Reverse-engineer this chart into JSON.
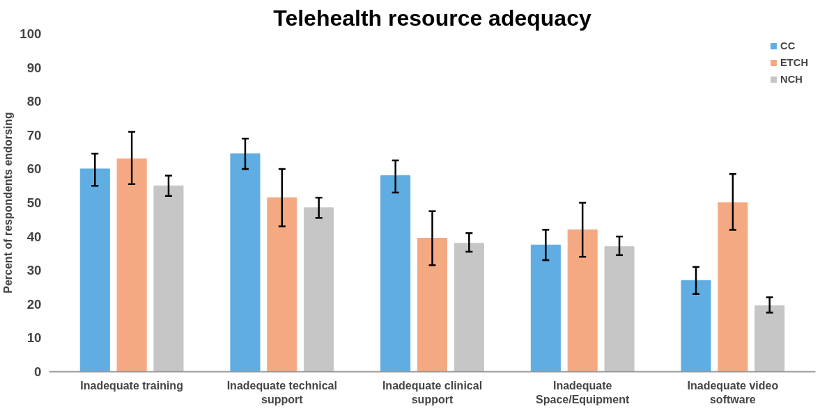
{
  "chart_data": {
    "type": "bar",
    "title": "Telehealth resource adequacy",
    "ylabel": "Percent of respondents endorsing",
    "categories": [
      "Inadequate training",
      "Inadequate technical support",
      "Inadequate clinical support",
      "Inadequate Space/Equipment",
      "Inadequate video software"
    ],
    "series": [
      {
        "name": "CC",
        "color": "#5fade3",
        "values": [
          60,
          64.5,
          58,
          37.5,
          27
        ],
        "errors": [
          [
            55,
            64.5
          ],
          [
            60,
            69
          ],
          [
            53,
            62.5
          ],
          [
            33,
            42
          ],
          [
            23,
            31
          ]
        ]
      },
      {
        "name": "ETCH",
        "color": "#f5a983",
        "values": [
          63,
          51.5,
          39.5,
          42,
          50
        ],
        "errors": [
          [
            55.5,
            71
          ],
          [
            43,
            60
          ],
          [
            31.5,
            47.5
          ],
          [
            34,
            50
          ],
          [
            42,
            58.5
          ]
        ]
      },
      {
        "name": "NCH",
        "color": "#c6c6c6",
        "values": [
          55,
          48.5,
          38,
          37,
          19.5
        ],
        "errors": [
          [
            52,
            58
          ],
          [
            45.5,
            51.5
          ],
          [
            35.5,
            41
          ],
          [
            34.5,
            40
          ],
          [
            17.5,
            22
          ]
        ]
      }
    ],
    "ylim": [
      0,
      100
    ],
    "yticks": [
      0,
      10,
      20,
      30,
      40,
      50,
      60,
      70,
      80,
      90,
      100
    ],
    "grid": false,
    "legend": "top right"
  }
}
